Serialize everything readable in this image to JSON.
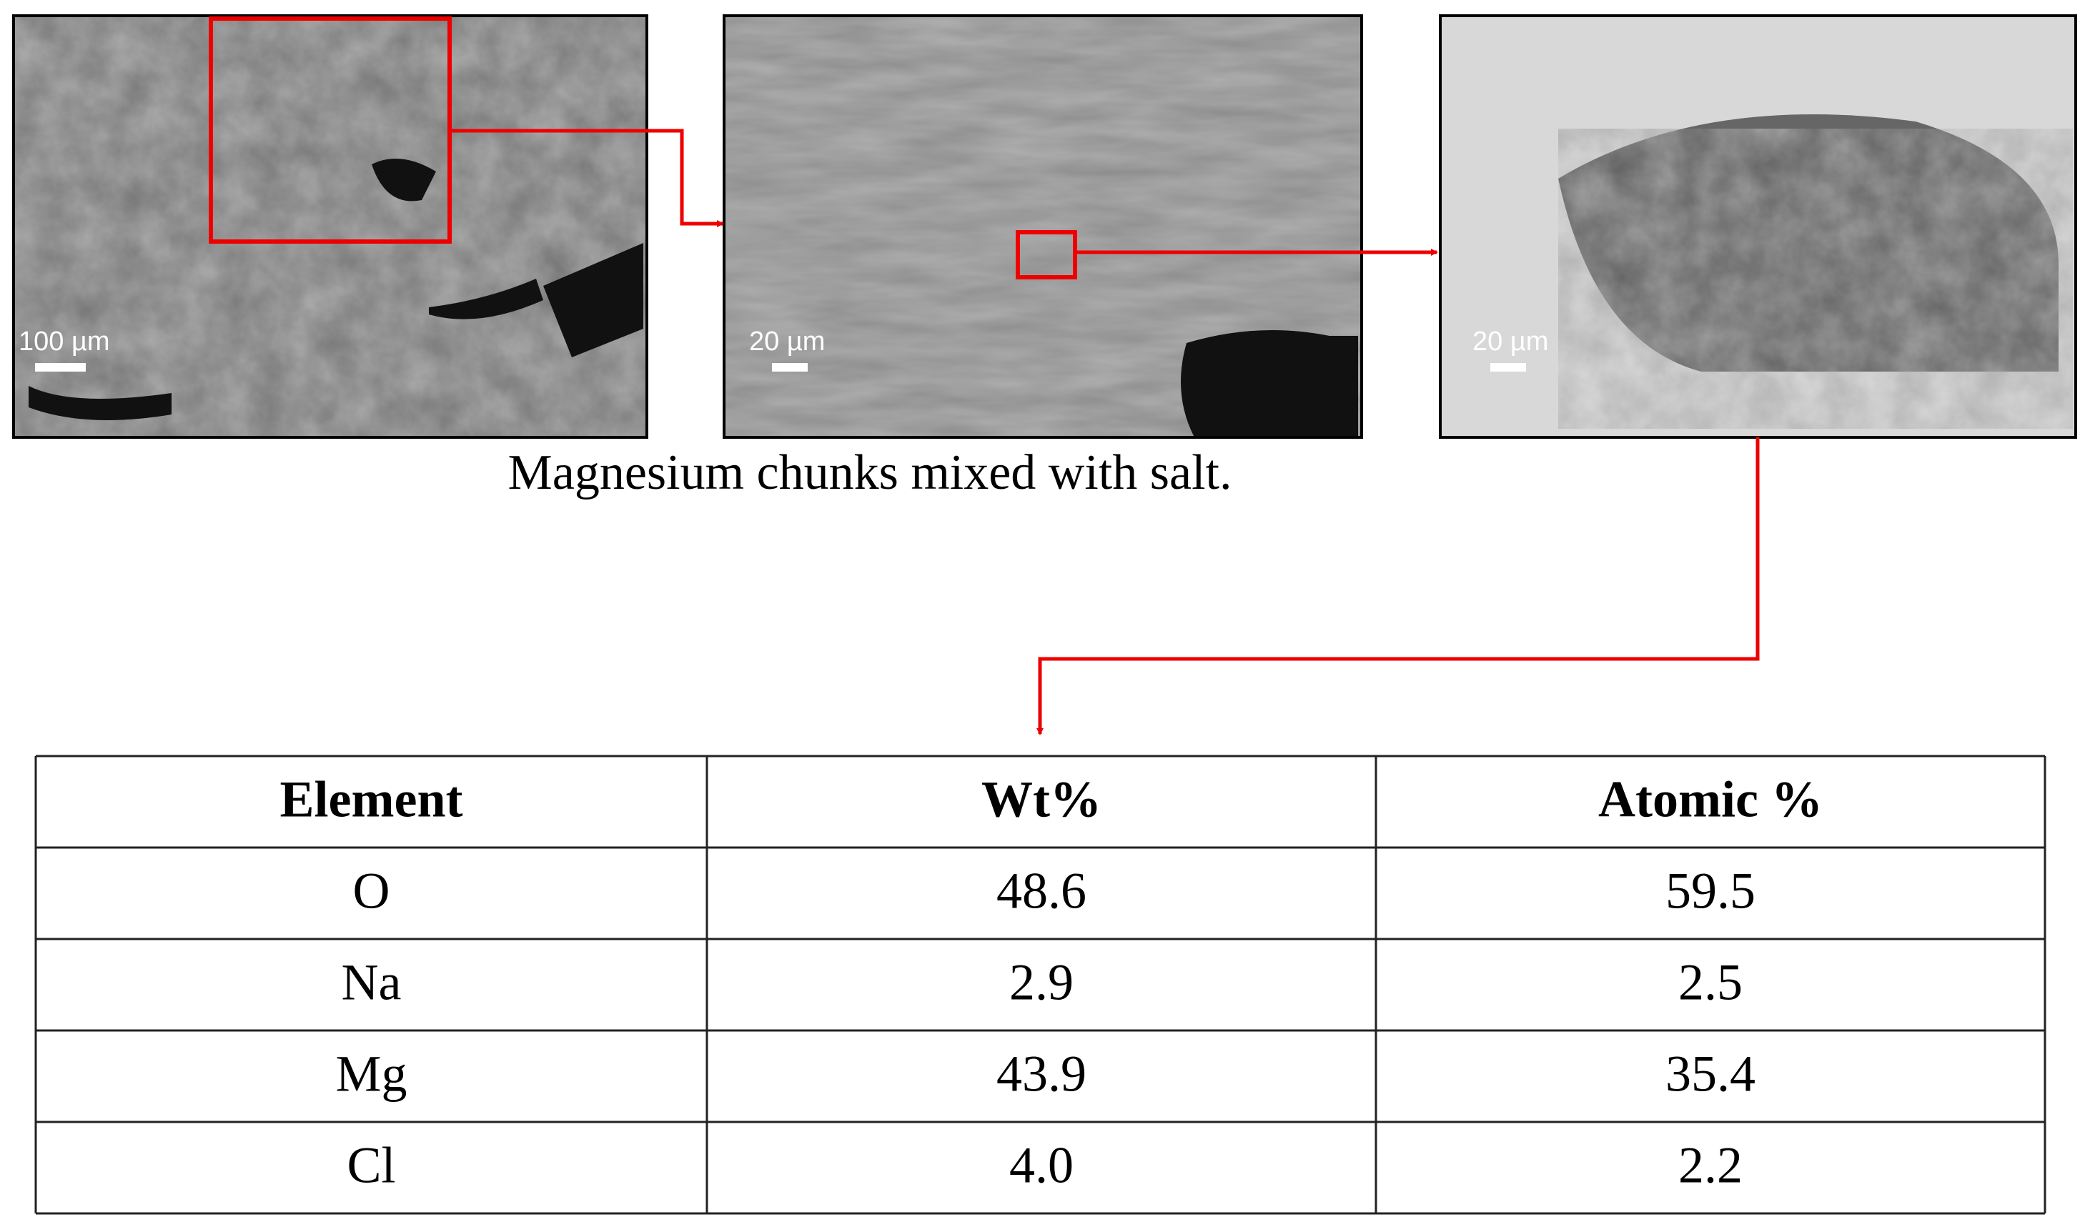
{
  "caption": "Magnesium chunks mixed with salt.",
  "images": [
    {
      "scale_label": "100 µm"
    },
    {
      "scale_label": "20 µm"
    },
    {
      "scale_label": "20 µm"
    }
  ],
  "table": {
    "header": [
      "Element",
      "Wt%",
      "Atomic %"
    ],
    "rows": [
      [
        "O",
        "48.6",
        "59.5"
      ],
      [
        "Na",
        "2.9",
        "2.5"
      ],
      [
        "Mg",
        "43.9",
        "35.4"
      ],
      [
        "Cl",
        "4.0",
        "2.2"
      ]
    ]
  }
}
